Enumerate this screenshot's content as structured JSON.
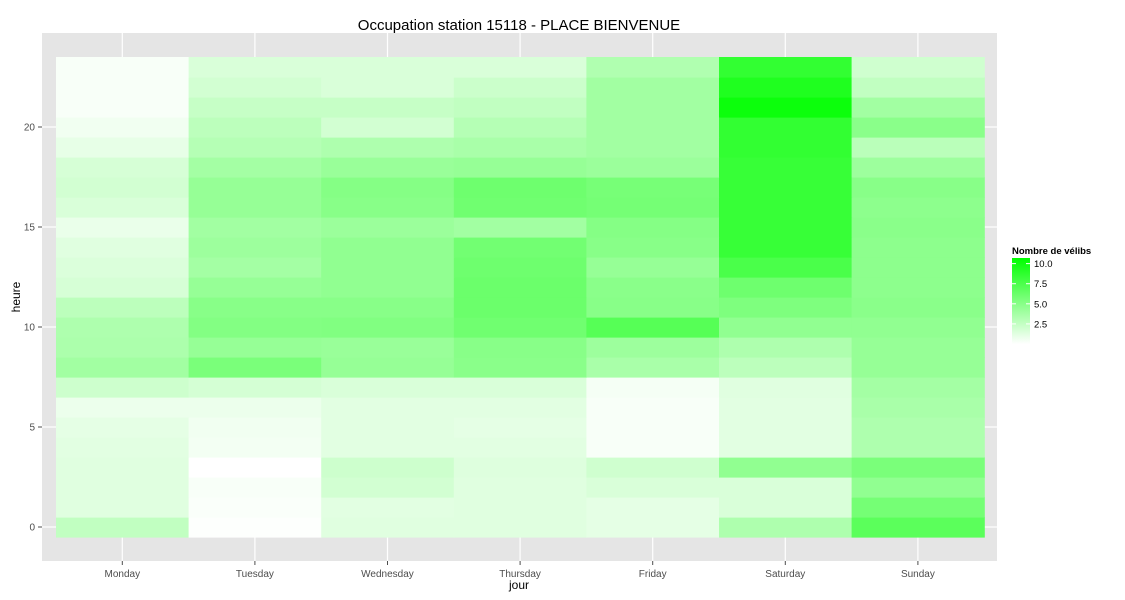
{
  "chart_data": {
    "type": "heatmap",
    "title": "Occupation station 15118 - PLACE BIENVENUE",
    "xlabel": "jour",
    "ylabel": "heure",
    "categories": [
      "Monday",
      "Tuesday",
      "Wednesday",
      "Thursday",
      "Friday",
      "Saturday",
      "Sunday"
    ],
    "hours": [
      0,
      1,
      2,
      3,
      4,
      5,
      6,
      7,
      8,
      9,
      10,
      11,
      12,
      13,
      14,
      15,
      16,
      17,
      18,
      19,
      20,
      21,
      22,
      23
    ],
    "y_ticks": [
      0,
      5,
      10,
      15,
      20
    ],
    "ylim": [
      0,
      23
    ],
    "grid": true,
    "colorscale": {
      "low": "#ffffff",
      "high": "#00ff00",
      "min": 0,
      "max": 10.7
    },
    "legend": {
      "title": "Nombre de vélibs",
      "ticks": [
        10.0,
        7.5,
        5.0,
        2.5
      ],
      "tick_labels": [
        "10.0",
        "7.5",
        "5.0",
        "2.5"
      ],
      "position": "right"
    },
    "values": [
      [
        2.6,
        0.1,
        1.3,
        1.3,
        1.1,
        3.4,
        6.9
      ],
      [
        1.3,
        0.2,
        1.2,
        1.3,
        1.1,
        1.6,
        5.8
      ],
      [
        1.3,
        0.3,
        1.9,
        1.3,
        1.6,
        1.6,
        4.6
      ],
      [
        1.3,
        0.0,
        2.1,
        1.4,
        2.0,
        4.6,
        5.6
      ],
      [
        1.2,
        0.5,
        1.2,
        1.2,
        0.3,
        1.2,
        3.4
      ],
      [
        1.1,
        0.6,
        1.2,
        1.1,
        0.3,
        1.2,
        3.4
      ],
      [
        0.8,
        0.8,
        1.2,
        1.2,
        0.3,
        1.2,
        3.6
      ],
      [
        2.1,
        1.8,
        1.6,
        1.6,
        0.4,
        1.3,
        3.8
      ],
      [
        3.9,
        5.6,
        4.4,
        4.9,
        3.6,
        2.8,
        4.4
      ],
      [
        3.5,
        4.4,
        4.3,
        5.0,
        4.1,
        3.4,
        4.4
      ],
      [
        3.4,
        5.2,
        5.3,
        6.0,
        7.1,
        4.6,
        4.6
      ],
      [
        2.8,
        5.0,
        5.0,
        6.2,
        5.0,
        5.4,
        4.9
      ],
      [
        1.7,
        4.4,
        4.6,
        6.2,
        4.9,
        6.1,
        4.8
      ],
      [
        1.5,
        3.8,
        4.6,
        6.1,
        4.4,
        7.6,
        4.8
      ],
      [
        1.3,
        4.1,
        4.6,
        5.9,
        5.0,
        8.4,
        4.8
      ],
      [
        0.9,
        3.9,
        4.2,
        3.9,
        5.1,
        8.4,
        4.9
      ],
      [
        1.6,
        4.4,
        5.0,
        6.0,
        5.8,
        8.4,
        4.8
      ],
      [
        1.9,
        4.4,
        5.1,
        6.1,
        5.7,
        8.4,
        5.0
      ],
      [
        1.7,
        3.8,
        4.3,
        4.4,
        4.2,
        8.4,
        4.1
      ],
      [
        1.0,
        3.1,
        3.4,
        3.6,
        3.9,
        8.6,
        2.9
      ],
      [
        0.6,
        2.8,
        1.9,
        3.1,
        3.9,
        8.6,
        4.9
      ],
      [
        0.3,
        2.4,
        2.4,
        2.6,
        3.9,
        10.2,
        3.9
      ],
      [
        0.3,
        1.9,
        1.6,
        2.2,
        3.9,
        9.4,
        2.6
      ],
      [
        0.3,
        1.6,
        1.6,
        1.6,
        3.3,
        8.6,
        2.0
      ]
    ]
  }
}
